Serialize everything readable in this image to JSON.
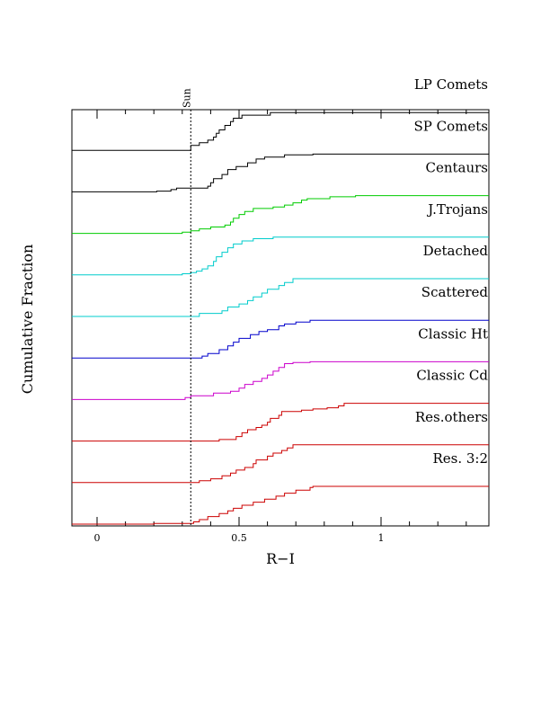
{
  "chart_data": {
    "type": "line",
    "xlabel": "R−I",
    "ylabel": "Cumulative Fraction",
    "xlim": [
      -0.09,
      1.38
    ],
    "x_ticks": [
      0,
      0.5,
      1
    ],
    "x_tick_labels": [
      "0",
      "0.5",
      "1"
    ],
    "grid": false,
    "reference_line": {
      "label": "Sun",
      "x": 0.33,
      "style": "dashed"
    },
    "panel_layout": "stacked offset cumulative step curves, one per population, each rising from 0 to 1",
    "series": [
      {
        "name": "LP Comets",
        "color": "#000000",
        "steps": [
          [
            0.33,
            0.13
          ],
          [
            0.36,
            0.2
          ],
          [
            0.39,
            0.27
          ],
          [
            0.41,
            0.35
          ],
          [
            0.42,
            0.45
          ],
          [
            0.43,
            0.54
          ],
          [
            0.45,
            0.66
          ],
          [
            0.47,
            0.76
          ],
          [
            0.48,
            0.85
          ],
          [
            0.51,
            0.93
          ],
          [
            0.61,
            1.0
          ]
        ]
      },
      {
        "name": "SP Comets",
        "color": "#000000",
        "steps": [
          [
            0.21,
            0.02
          ],
          [
            0.26,
            0.06
          ],
          [
            0.28,
            0.1
          ],
          [
            0.39,
            0.15
          ],
          [
            0.4,
            0.24
          ],
          [
            0.41,
            0.35
          ],
          [
            0.44,
            0.46
          ],
          [
            0.46,
            0.59
          ],
          [
            0.49,
            0.67
          ],
          [
            0.53,
            0.77
          ],
          [
            0.56,
            0.87
          ],
          [
            0.59,
            0.92
          ],
          [
            0.66,
            0.98
          ],
          [
            0.76,
            1.0
          ]
        ]
      },
      {
        "name": "Centaurs",
        "color": "#00cc00",
        "steps": [
          [
            0.3,
            0.03
          ],
          [
            0.33,
            0.07
          ],
          [
            0.36,
            0.12
          ],
          [
            0.4,
            0.17
          ],
          [
            0.45,
            0.22
          ],
          [
            0.47,
            0.3
          ],
          [
            0.48,
            0.4
          ],
          [
            0.5,
            0.5
          ],
          [
            0.52,
            0.58
          ],
          [
            0.55,
            0.66
          ],
          [
            0.62,
            0.7
          ],
          [
            0.66,
            0.75
          ],
          [
            0.69,
            0.81
          ],
          [
            0.72,
            0.88
          ],
          [
            0.74,
            0.92
          ],
          [
            0.82,
            0.97
          ],
          [
            0.91,
            1.0
          ]
        ]
      },
      {
        "name": "J.Trojans",
        "color": "#00cccc",
        "steps": [
          [
            0.3,
            0.03
          ],
          [
            0.33,
            0.06
          ],
          [
            0.35,
            0.1
          ],
          [
            0.37,
            0.16
          ],
          [
            0.39,
            0.24
          ],
          [
            0.41,
            0.36
          ],
          [
            0.42,
            0.48
          ],
          [
            0.44,
            0.6
          ],
          [
            0.46,
            0.72
          ],
          [
            0.48,
            0.82
          ],
          [
            0.51,
            0.9
          ],
          [
            0.55,
            0.96
          ],
          [
            0.62,
            1.0
          ]
        ]
      },
      {
        "name": "Detached",
        "color": "#00cccc",
        "steps": [
          [
            0.36,
            0.08
          ],
          [
            0.44,
            0.15
          ],
          [
            0.46,
            0.25
          ],
          [
            0.5,
            0.33
          ],
          [
            0.53,
            0.42
          ],
          [
            0.55,
            0.52
          ],
          [
            0.58,
            0.62
          ],
          [
            0.6,
            0.72
          ],
          [
            0.64,
            0.82
          ],
          [
            0.66,
            0.9
          ],
          [
            0.69,
            1.0
          ]
        ]
      },
      {
        "name": "Scattered",
        "color": "#0000cc",
        "steps": [
          [
            0.37,
            0.05
          ],
          [
            0.39,
            0.12
          ],
          [
            0.43,
            0.22
          ],
          [
            0.46,
            0.32
          ],
          [
            0.48,
            0.42
          ],
          [
            0.5,
            0.52
          ],
          [
            0.54,
            0.62
          ],
          [
            0.57,
            0.7
          ],
          [
            0.6,
            0.75
          ],
          [
            0.64,
            0.85
          ],
          [
            0.66,
            0.9
          ],
          [
            0.7,
            0.95
          ],
          [
            0.75,
            1.0
          ]
        ]
      },
      {
        "name": "Classic Ht",
        "color": "#cc00cc",
        "steps": [
          [
            0.31,
            0.05
          ],
          [
            0.33,
            0.1
          ],
          [
            0.41,
            0.17
          ],
          [
            0.47,
            0.22
          ],
          [
            0.5,
            0.3
          ],
          [
            0.52,
            0.4
          ],
          [
            0.55,
            0.48
          ],
          [
            0.58,
            0.56
          ],
          [
            0.6,
            0.65
          ],
          [
            0.62,
            0.75
          ],
          [
            0.64,
            0.85
          ],
          [
            0.66,
            0.95
          ],
          [
            0.69,
            0.98
          ],
          [
            0.75,
            1.0
          ]
        ]
      },
      {
        "name": "Classic Cd",
        "color": "#cc0000",
        "steps": [
          [
            0.43,
            0.04
          ],
          [
            0.49,
            0.12
          ],
          [
            0.51,
            0.22
          ],
          [
            0.53,
            0.3
          ],
          [
            0.56,
            0.36
          ],
          [
            0.58,
            0.42
          ],
          [
            0.6,
            0.5
          ],
          [
            0.61,
            0.6
          ],
          [
            0.64,
            0.68
          ],
          [
            0.65,
            0.78
          ],
          [
            0.72,
            0.82
          ],
          [
            0.76,
            0.85
          ],
          [
            0.81,
            0.88
          ],
          [
            0.85,
            0.93
          ],
          [
            0.87,
            1.0
          ]
        ]
      },
      {
        "name": "Res.others",
        "color": "#cc0000",
        "steps": [
          [
            0.36,
            0.05
          ],
          [
            0.4,
            0.1
          ],
          [
            0.44,
            0.18
          ],
          [
            0.47,
            0.25
          ],
          [
            0.49,
            0.33
          ],
          [
            0.52,
            0.4
          ],
          [
            0.55,
            0.5
          ],
          [
            0.56,
            0.6
          ],
          [
            0.6,
            0.7
          ],
          [
            0.62,
            0.78
          ],
          [
            0.65,
            0.85
          ],
          [
            0.67,
            0.92
          ],
          [
            0.69,
            1.0
          ]
        ]
      },
      {
        "name": "Res. 3:2",
        "color": "#cc0000",
        "steps": [
          [
            0.2,
            0.02
          ],
          [
            0.34,
            0.06
          ],
          [
            0.36,
            0.12
          ],
          [
            0.39,
            0.2
          ],
          [
            0.43,
            0.28
          ],
          [
            0.46,
            0.35
          ],
          [
            0.48,
            0.42
          ],
          [
            0.51,
            0.5
          ],
          [
            0.55,
            0.58
          ],
          [
            0.59,
            0.66
          ],
          [
            0.63,
            0.74
          ],
          [
            0.66,
            0.82
          ],
          [
            0.7,
            0.9
          ],
          [
            0.75,
            0.97
          ],
          [
            0.76,
            1.0
          ]
        ]
      }
    ]
  }
}
